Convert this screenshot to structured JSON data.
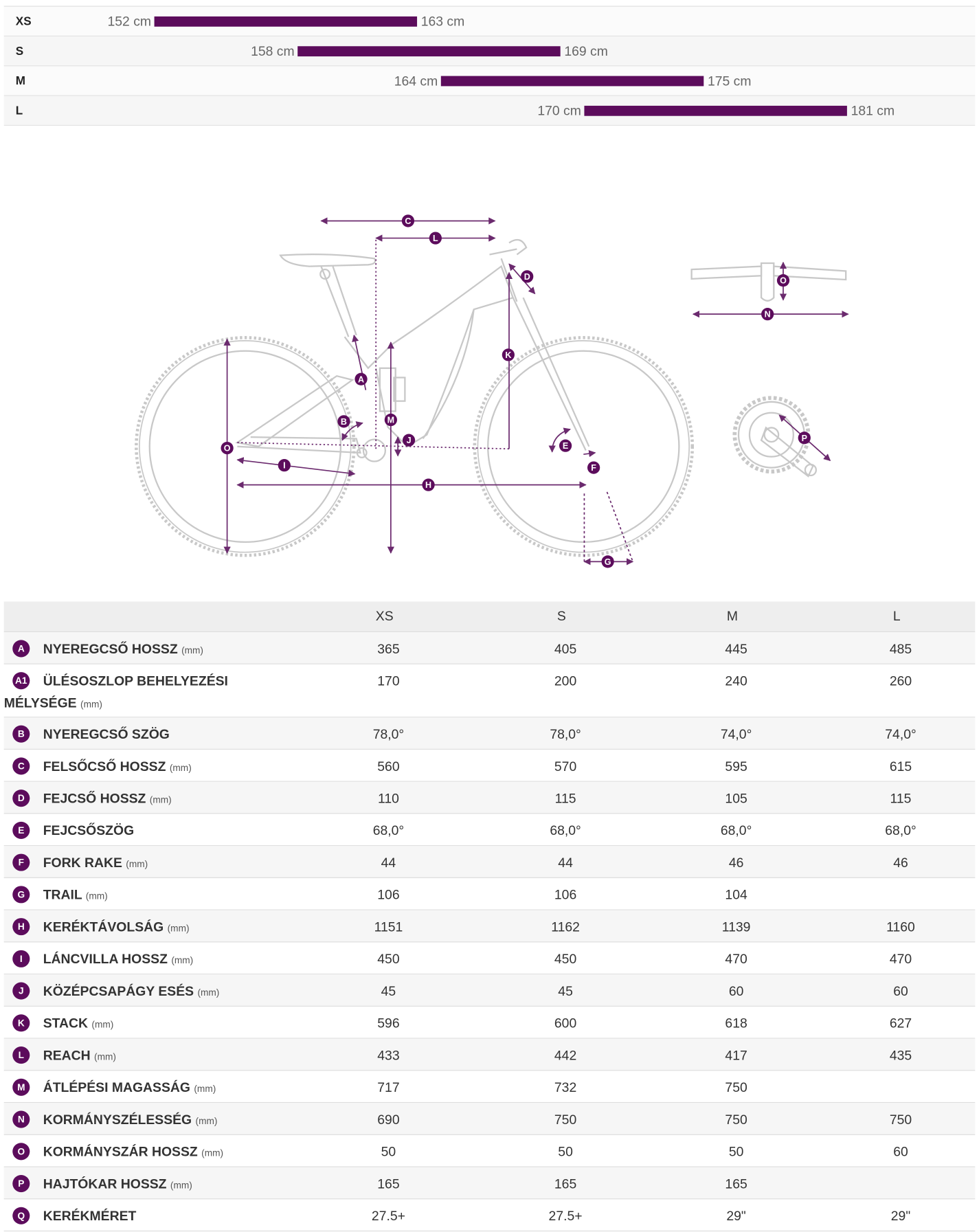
{
  "size_chart": {
    "rows": [
      {
        "size": "XS",
        "min": 152,
        "max": 163,
        "min_label": "152 cm",
        "max_label": "163 cm"
      },
      {
        "size": "S",
        "min": 158,
        "max": 169,
        "min_label": "158 cm",
        "max_label": "169 cm"
      },
      {
        "size": "M",
        "min": 164,
        "max": 175,
        "min_label": "164 cm",
        "max_label": "175 cm"
      },
      {
        "size": "L",
        "min": 170,
        "max": 181,
        "min_label": "170 cm",
        "max_label": "181 cm"
      }
    ]
  },
  "diagram": {
    "markers": [
      "C",
      "L",
      "D",
      "K",
      "A",
      "M",
      "B",
      "J",
      "O",
      "I",
      "H",
      "E",
      "F",
      "G",
      "O",
      "N",
      "P"
    ]
  },
  "geometry_table": {
    "columns": [
      "XS",
      "S",
      "M",
      "L"
    ],
    "rows": [
      {
        "badge": "A",
        "name": "NYEREGCSŐ HOSSZ",
        "unit": "(mm)",
        "values": [
          365,
          405,
          445,
          485
        ]
      },
      {
        "badge": "A1",
        "name": "ÜLÉSOSZLOP BEHELYEZÉSI MÉLYSÉGE",
        "unit": "(mm)",
        "values": [
          170,
          200,
          240,
          260
        ]
      },
      {
        "badge": "B",
        "name": "NYEREGCSŐ SZÖG",
        "values": [
          "78,0°",
          "78,0°",
          "74,0°",
          "74,0°"
        ]
      },
      {
        "badge": "C",
        "name": "FELSŐCSŐ HOSSZ",
        "unit": "(mm)",
        "values": [
          560,
          570,
          595,
          615
        ]
      },
      {
        "badge": "D",
        "name": "FEJCSŐ HOSSZ",
        "unit": "(mm)",
        "values": [
          110,
          115,
          105,
          115
        ]
      },
      {
        "badge": "E",
        "name": "FEJCSŐSZÖG",
        "values": [
          "68,0°",
          "68,0°",
          "68,0°",
          "68,0°"
        ]
      },
      {
        "badge": "F",
        "name": "FORK RAKE",
        "unit": "(mm)",
        "values": [
          44,
          44,
          46,
          46
        ]
      },
      {
        "badge": "G",
        "name": "TRAIL",
        "unit": "(mm)",
        "values": [
          106,
          106,
          104,
          null
        ]
      },
      {
        "badge": "H",
        "name": "KERÉKTÁVOLSÁG",
        "unit": "(mm)",
        "values": [
          1151,
          1162,
          1139,
          1160
        ]
      },
      {
        "badge": "I",
        "name": "LÁNCVILLA HOSSZ",
        "unit": "(mm)",
        "values": [
          450,
          450,
          470,
          470
        ]
      },
      {
        "badge": "J",
        "name": "KÖZÉPCSAPÁGY ESÉS",
        "unit": "(mm)",
        "values": [
          45,
          45,
          60,
          60
        ]
      },
      {
        "badge": "K",
        "name": "STACK",
        "unit": "(mm)",
        "values": [
          596,
          600,
          618,
          627
        ]
      },
      {
        "badge": "L",
        "name": "REACH",
        "unit": "(mm)",
        "values": [
          433,
          442,
          417,
          435
        ]
      },
      {
        "badge": "M",
        "name": "ÁTLÉPÉSI MAGASSÁG",
        "unit": "(mm)",
        "values": [
          717,
          732,
          750,
          null
        ]
      },
      {
        "badge": "N",
        "name": "KORMÁNYSZÉLESSÉG",
        "unit": "(mm)",
        "values": [
          690,
          750,
          750,
          750
        ]
      },
      {
        "badge": "O",
        "name": "KORMÁNYSZÁR HOSSZ",
        "unit": "(mm)",
        "values": [
          50,
          50,
          50,
          60
        ]
      },
      {
        "badge": "P",
        "name": "HAJTÓKAR HOSSZ",
        "unit": "(mm)",
        "values": [
          165,
          165,
          165,
          null
        ]
      },
      {
        "badge": "Q",
        "name": "KERÉKMÉRET",
        "values": [
          "27.5+",
          "27.5+",
          "29\"",
          "29\""
        ]
      }
    ]
  }
}
